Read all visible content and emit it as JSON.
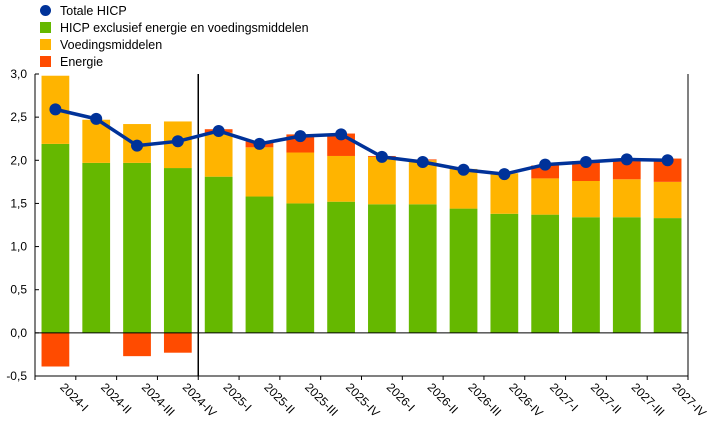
{
  "chart_data": {
    "type": "bar",
    "categories": [
      "2024-I",
      "2024-II",
      "2024-III",
      "2024-IV",
      "2025-I",
      "2025-II",
      "2025-III",
      "2025-IV",
      "2026-I",
      "2026-II",
      "2026-III",
      "2026-IV",
      "2027-I",
      "2027-II",
      "2027-III",
      "2027-IV"
    ],
    "series": [
      {
        "name": "HICP exclusief energie en voedingsmiddelen",
        "color": "#65b800",
        "values": [
          2.19,
          1.97,
          1.97,
          1.91,
          1.81,
          1.58,
          1.5,
          1.52,
          1.49,
          1.49,
          1.44,
          1.38,
          1.37,
          1.34,
          1.34,
          1.33
        ]
      },
      {
        "name": "Voedingsmiddelen",
        "color": "#ffb400",
        "values": [
          0.79,
          0.5,
          0.45,
          0.54,
          0.51,
          0.57,
          0.59,
          0.53,
          0.55,
          0.51,
          0.46,
          0.47,
          0.42,
          0.42,
          0.44,
          0.42
        ]
      },
      {
        "name": "Energie",
        "color": "#ff4b00",
        "values": [
          -0.39,
          0.0,
          -0.27,
          -0.23,
          0.04,
          0.07,
          0.21,
          0.26,
          0.01,
          0.01,
          0.0,
          0.0,
          0.15,
          0.23,
          0.22,
          0.27
        ]
      }
    ],
    "line": {
      "name": "Totale HICP",
      "color": "#003299",
      "values": [
        2.59,
        2.48,
        2.17,
        2.22,
        2.34,
        2.19,
        2.28,
        2.3,
        2.04,
        1.98,
        1.89,
        1.84,
        1.95,
        1.98,
        2.01,
        2.0
      ]
    },
    "ylim": [
      -0.5,
      3.0
    ],
    "yticks": [
      "-0,5",
      "0,0",
      "0,5",
      "1,0",
      "1,5",
      "2,0",
      "2,5",
      "3,0"
    ],
    "legend_position": "top-left",
    "divider_after": "2024-IV"
  }
}
